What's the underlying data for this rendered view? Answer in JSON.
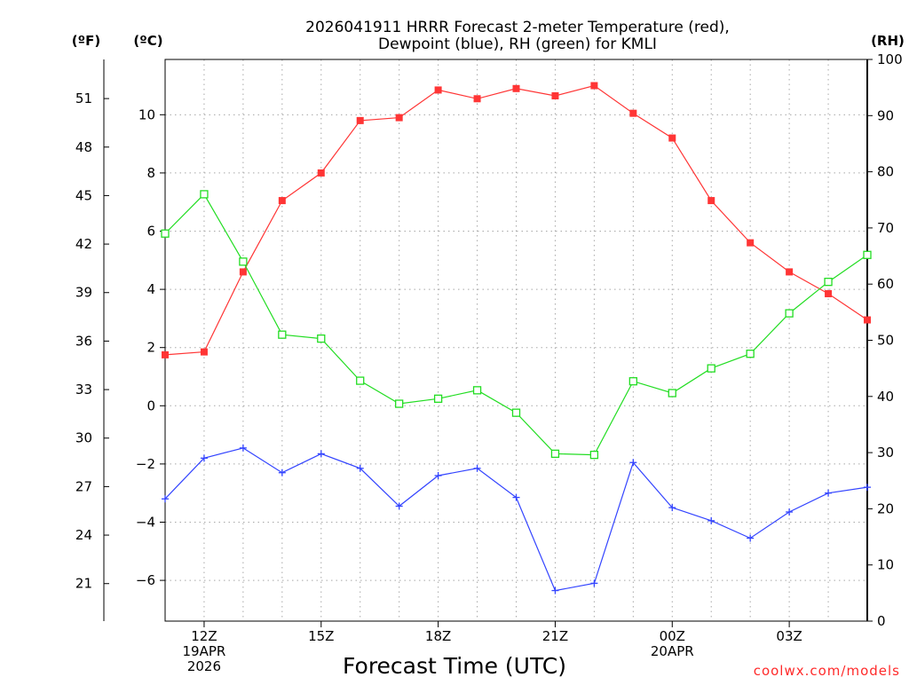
{
  "chart_data": {
    "type": "line",
    "title_line1": "2026041911 HRRR Forecast 2-meter Temperature (red),",
    "title_line2": "Dewpoint (blue), RH (green) for KMLI",
    "xlabel": "Forecast Time (UTC)",
    "credit": "coolwx.com/models",
    "units": {
      "f": "(ºF)",
      "c": "(ºC)",
      "rh": "(RH)"
    },
    "xlim": [
      11,
      29
    ],
    "x": [
      11,
      12,
      13,
      14,
      15,
      16,
      17,
      18,
      19,
      20,
      21,
      22,
      23,
      24,
      25,
      26,
      27,
      28,
      29
    ],
    "x_ticks": [
      {
        "x": 12,
        "lines": [
          "12Z",
          "19APR",
          "2026"
        ]
      },
      {
        "x": 15,
        "lines": [
          "15Z"
        ]
      },
      {
        "x": 18,
        "lines": [
          "18Z"
        ]
      },
      {
        "x": 21,
        "lines": [
          "21Z"
        ]
      },
      {
        "x": 24,
        "lines": [
          "00Z",
          "20APR"
        ]
      },
      {
        "x": 27,
        "lines": [
          "03Z"
        ]
      }
    ],
    "c_axis": {
      "ylim": [
        -7.4,
        11.9
      ],
      "ticks": [
        "-6",
        "-4",
        "-2",
        "0",
        "2",
        "4",
        "6",
        "8",
        "10"
      ]
    },
    "f_axis": {
      "ticks": [
        "21",
        "24",
        "27",
        "30",
        "33",
        "36",
        "39",
        "42",
        "45",
        "48",
        "51"
      ]
    },
    "rh_axis": {
      "ylim": [
        0,
        100
      ],
      "ticks": [
        "0",
        "10",
        "20",
        "30",
        "40",
        "50",
        "60",
        "70",
        "80",
        "90",
        "100"
      ]
    },
    "series": [
      {
        "name": "Temperature",
        "axis": "c",
        "color": "#ff3535",
        "marker": "square-filled",
        "values": [
          1.75,
          1.85,
          4.6,
          7.05,
          8.0,
          9.8,
          9.9,
          10.85,
          10.55,
          10.9,
          10.65,
          11.0,
          10.05,
          9.2,
          7.05,
          5.6,
          4.6,
          3.85,
          2.95
        ]
      },
      {
        "name": "Dewpoint",
        "axis": "c",
        "color": "#3344ff",
        "marker": "plus",
        "values": [
          -3.2,
          -1.8,
          -1.45,
          -2.3,
          -1.65,
          -2.15,
          -3.45,
          -2.4,
          -2.15,
          -3.15,
          -6.35,
          -6.1,
          -1.95,
          -3.5,
          -3.95,
          -4.55,
          -3.65,
          -3.0,
          -2.8
        ]
      },
      {
        "name": "RH",
        "axis": "rh",
        "color": "#22dd22",
        "marker": "square-open",
        "values": [
          69,
          76,
          64,
          51,
          50.3,
          42.8,
          38.7,
          39.6,
          41.1,
          37.1,
          29.8,
          29.6,
          42.7,
          40.6,
          45,
          47.6,
          54.8,
          60.4,
          65.2
        ]
      }
    ]
  }
}
